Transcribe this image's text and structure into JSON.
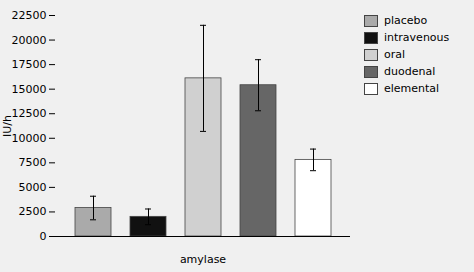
{
  "chart_data": {
    "type": "bar",
    "categories": [
      "placebo",
      "intravenous",
      "oral",
      "duodenal",
      "elemental"
    ],
    "values": [
      2900,
      2000,
      16100,
      15400,
      7800
    ],
    "errors": [
      1200,
      800,
      5400,
      2600,
      1100
    ],
    "colors": [
      "#aaaaaa",
      "#111111",
      "#d0d0d0",
      "#666666",
      "#ffffff"
    ],
    "ylabel": "IU/h",
    "xlabel": "amylase",
    "ylim": [
      0,
      22500
    ],
    "yticks": [
      0,
      2500,
      5000,
      7500,
      10000,
      12500,
      15000,
      17500,
      20000,
      22500
    ],
    "grid": false,
    "legend": "right",
    "tick_labels": "y"
  }
}
